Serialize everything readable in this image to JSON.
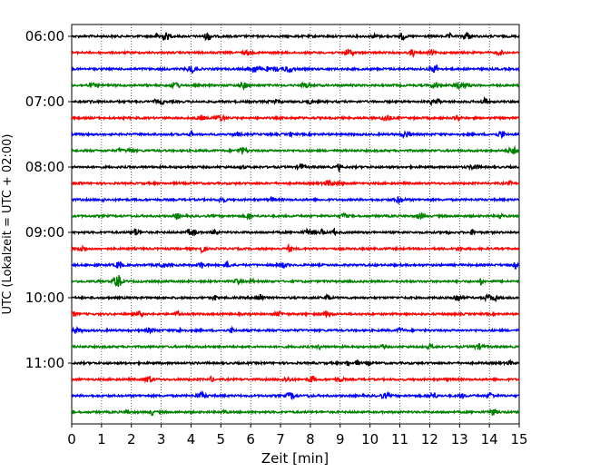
{
  "chart_data": {
    "type": "line",
    "title": "",
    "xlabel": "Zeit  [min]",
    "ylabel": "UTC (Lokalzeit = UTC + 02:00)",
    "xlim": [
      0,
      15
    ],
    "x_ticks": [
      "0",
      "1",
      "2",
      "3",
      "4",
      "5",
      "6",
      "7",
      "8",
      "9",
      "10",
      "11",
      "12",
      "13",
      "14",
      "15"
    ],
    "y_tick_labels": [
      "06:00",
      "07:00",
      "08:00",
      "09:00",
      "10:00",
      "11:00"
    ],
    "grid": "vertical dotted lines at each minute",
    "trace_colors": [
      "#000000",
      "#ff0000",
      "#0000ff",
      "#008000"
    ],
    "series": [
      {
        "start": "06:00",
        "color": "#000000"
      },
      {
        "start": "06:15",
        "color": "#ff0000"
      },
      {
        "start": "06:30",
        "color": "#0000ff"
      },
      {
        "start": "06:45",
        "color": "#008000"
      },
      {
        "start": "07:00",
        "color": "#000000"
      },
      {
        "start": "07:15",
        "color": "#ff0000"
      },
      {
        "start": "07:30",
        "color": "#0000ff"
      },
      {
        "start": "07:45",
        "color": "#008000"
      },
      {
        "start": "08:00",
        "color": "#000000"
      },
      {
        "start": "08:15",
        "color": "#ff0000"
      },
      {
        "start": "08:30",
        "color": "#0000ff"
      },
      {
        "start": "08:45",
        "color": "#008000"
      },
      {
        "start": "09:00",
        "color": "#000000"
      },
      {
        "start": "09:15",
        "color": "#ff0000"
      },
      {
        "start": "09:30",
        "color": "#0000ff"
      },
      {
        "start": "09:45",
        "color": "#008000"
      },
      {
        "start": "10:00",
        "color": "#000000"
      },
      {
        "start": "10:15",
        "color": "#ff0000"
      },
      {
        "start": "10:30",
        "color": "#0000ff"
      },
      {
        "start": "10:45",
        "color": "#008000"
      },
      {
        "start": "11:00",
        "color": "#000000"
      },
      {
        "start": "11:15",
        "color": "#ff0000"
      },
      {
        "start": "11:30",
        "color": "#0000ff"
      },
      {
        "start": "11:45",
        "color": "#008000"
      }
    ]
  }
}
